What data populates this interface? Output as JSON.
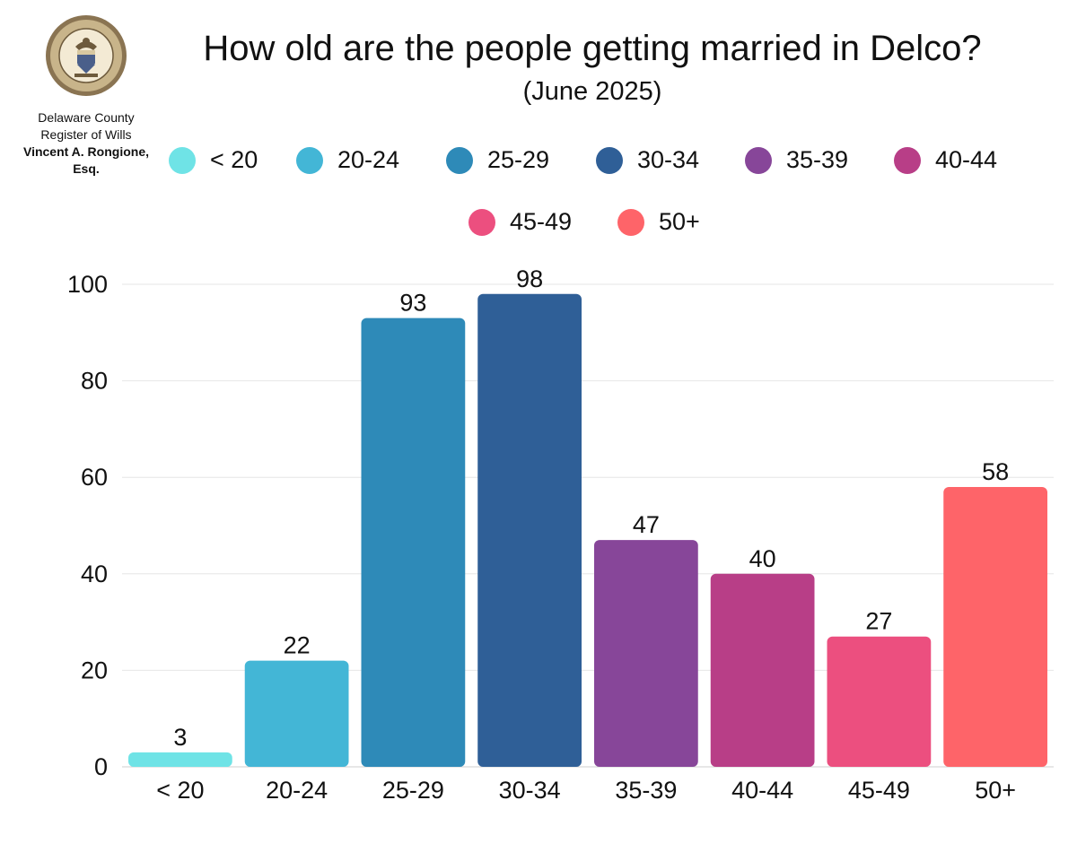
{
  "header": {
    "org_line1": "Delaware County",
    "org_line2": "Register of Wills",
    "org_name_line1": "Vincent A. Rongione,",
    "org_name_line2": "Esq."
  },
  "seal": {
    "icon": "county-seal-icon",
    "text": "COUNTY OF DELAWARE PENNSYLVANIA"
  },
  "chart_data": {
    "type": "bar",
    "title": "How old are the people getting married in Delco?",
    "subtitle": "(June 2025)",
    "xlabel": "",
    "ylabel": "",
    "categories": [
      "< 20",
      "20-24",
      "25-29",
      "30-34",
      "35-39",
      "40-44",
      "45-49",
      "50+"
    ],
    "values": [
      3,
      22,
      93,
      98,
      47,
      40,
      27,
      58
    ],
    "colors": [
      "#6fe3e6",
      "#43b6d6",
      "#2e8ab8",
      "#2f5f97",
      "#874699",
      "#b83e87",
      "#ec4f7f",
      "#fe6469"
    ],
    "yticks": [
      0,
      20,
      40,
      60,
      80,
      100
    ],
    "ylim": [
      0,
      100
    ],
    "grid": true,
    "legend_position": "top"
  }
}
